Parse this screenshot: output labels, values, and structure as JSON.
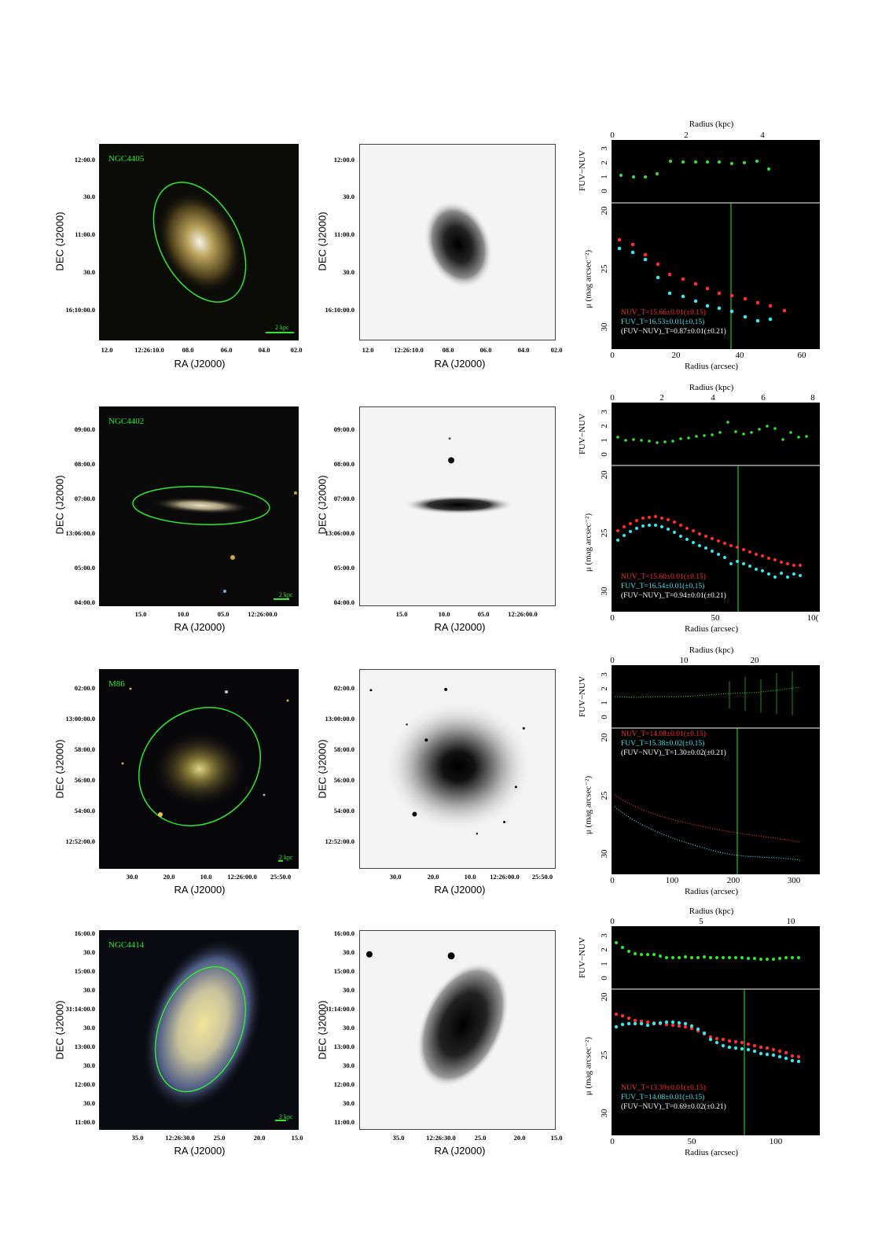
{
  "galaxies": [
    {
      "name": "NGC4405",
      "scale_bar": "2 kpc",
      "dec_ticks": [
        "12:00.0",
        "30.0",
        "11:00.0",
        "30.0",
        "16:10:00.0"
      ],
      "ra_ticks": [
        "12.0",
        "12:26:10.0",
        "08.0",
        "06.0",
        "04.0",
        "02.0"
      ],
      "ra_label": "RA (J2000)",
      "dec_label": "DEC (J2000)",
      "profile": {
        "kpc_ticks": [
          "0",
          "2",
          "4"
        ],
        "kpc_label": "Radius (kpc)",
        "color_ticks": [
          "3",
          "2",
          "1",
          "0"
        ],
        "color_label": "FUV−NUV",
        "mu_ticks": [
          "20",
          "25",
          "30"
        ],
        "mu_label": "μ (mag arcsec⁻²)",
        "arcsec_ticks": [
          "0",
          "20",
          "40",
          "60"
        ],
        "arcsec_label": "Radius (arcsec)",
        "nuv": "NUV_T=15.66±0.01(±0.15)",
        "fuv": "FUV_T=16.53±0.01(±0.15)",
        "color": "(FUV−NUV)_T=0.87±0.01(±0.21)"
      }
    },
    {
      "name": "NGC4402",
      "scale_bar": "2 kpc",
      "dec_ticks": [
        "09:00.0",
        "08:00.0",
        "07:00.0",
        "13:06:00.0",
        "05:00.0",
        "04:00.0"
      ],
      "ra_ticks": [
        "15.0",
        "10.0",
        "05.0",
        "12:26:00.0"
      ],
      "ra_label": "RA (J2000)",
      "dec_label": "DEC (J2000)",
      "profile": {
        "kpc_ticks": [
          "0",
          "2",
          "4",
          "6",
          "8"
        ],
        "kpc_label": "Radius (kpc)",
        "color_ticks": [
          "3",
          "2",
          "1",
          "0"
        ],
        "color_label": "FUV−NUV",
        "mu_ticks": [
          "20",
          "25",
          "30"
        ],
        "mu_label": "μ (mag arcsec⁻²)",
        "arcsec_ticks": [
          "0",
          "50",
          "10("
        ],
        "arcsec_label": "Radius (arcsec)",
        "nuv": "NUV_T=15.60±0.01(±0.15)",
        "fuv": "FUV_T=16.54±0.01(±0.15)",
        "color": "(FUV−NUV)_T=0.94±0.01(±0.21)"
      }
    },
    {
      "name": "M86",
      "scale_bar": "2 kpc",
      "dec_ticks": [
        "02:00.0",
        "13:00:00.0",
        "58:00.0",
        "56:00.0",
        "54:00.0",
        "12:52:00.0"
      ],
      "ra_ticks": [
        "30.0",
        "20.0",
        "10.0",
        "12:26:00.0",
        "25:50.0"
      ],
      "ra_label": "RA (J2000)",
      "dec_label": "DEC (J2000)",
      "profile": {
        "kpc_ticks": [
          "0",
          "10",
          "20"
        ],
        "kpc_label": "Radius (kpc)",
        "color_ticks": [
          "3",
          "2",
          "1",
          "0"
        ],
        "color_label": "FUV−NUV",
        "mu_ticks": [
          "20",
          "25",
          "30"
        ],
        "mu_label": "μ (mag arcsec⁻²)",
        "arcsec_ticks": [
          "0",
          "100",
          "200",
          "300"
        ],
        "arcsec_label": "Radius (arcsec)",
        "nuv": "NUV_T=14.08±0.01(±0.15)",
        "fuv": "FUV_T=15.38±0.02(±0.15)",
        "color": "(FUV−NUV)_T=1.30±0.02(±0.21)"
      }
    },
    {
      "name": "NGC4414",
      "scale_bar": "2 kpc",
      "dec_ticks": [
        "16:00.0",
        "30.0",
        "15:00.0",
        "30.0",
        "31:14:00.0",
        "30.0",
        "13:00.0",
        "30.0",
        "12:00.0",
        "30.0",
        "11:00.0"
      ],
      "ra_ticks": [
        "35.0",
        "12:26:30.0",
        "25.0",
        "20.0",
        "15.0"
      ],
      "ra_label": "RA (J2000)",
      "dec_label": "DEC (J2000)",
      "profile": {
        "kpc_ticks": [
          "0",
          "5",
          "10"
        ],
        "kpc_label": "Radius (kpc)",
        "color_ticks": [
          "3",
          "2",
          "1",
          "0"
        ],
        "color_label": "FUV−NUV",
        "mu_ticks": [
          "20",
          "25",
          "30"
        ],
        "mu_label": "μ (mag arcsec⁻²)",
        "arcsec_ticks": [
          "0",
          "50",
          "100"
        ],
        "arcsec_label": "Radius (arcsec)",
        "nuv": "NUV_T=13.39±0.01(±0.15)",
        "fuv": "FUV_T=14.08±0.01(±0.15)",
        "color": "(FUV−NUV)_T=0.69±0.02(±0.21)"
      }
    }
  ],
  "colors": {
    "marker_green": "#2fe82f",
    "nuv_red": "#ff2d2d",
    "fuv_cyan": "#3fe3ea"
  }
}
